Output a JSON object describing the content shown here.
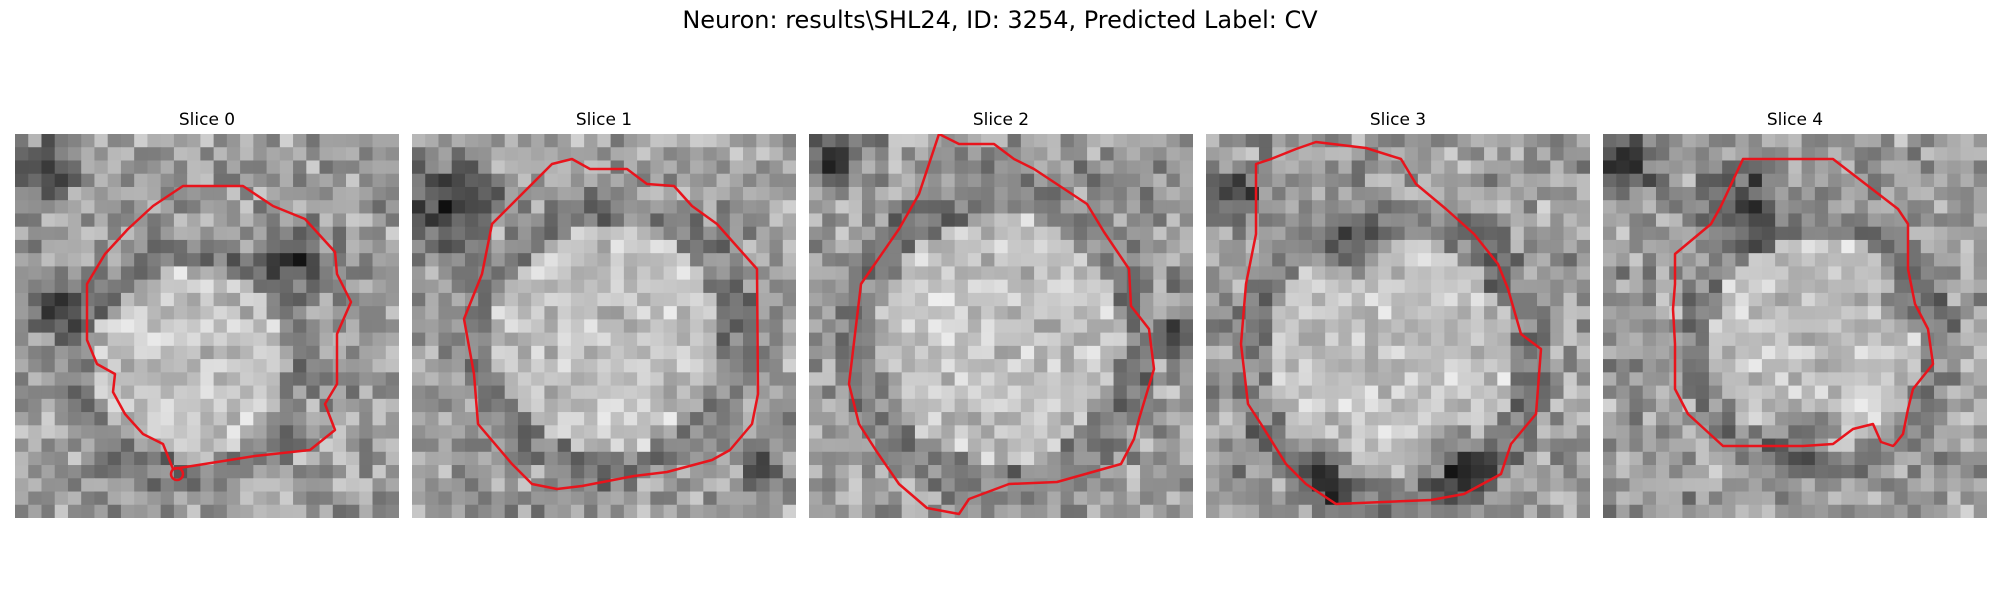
{
  "title": "Neuron: results\\SHL24, ID: 3254, Predicted Label: CV",
  "contour_color": "#e8141c",
  "panels": [
    {
      "title": "Slice 0"
    },
    {
      "title": "Slice 1"
    },
    {
      "title": "Slice 2"
    },
    {
      "title": "Slice 3"
    },
    {
      "title": "Slice 4"
    }
  ]
}
